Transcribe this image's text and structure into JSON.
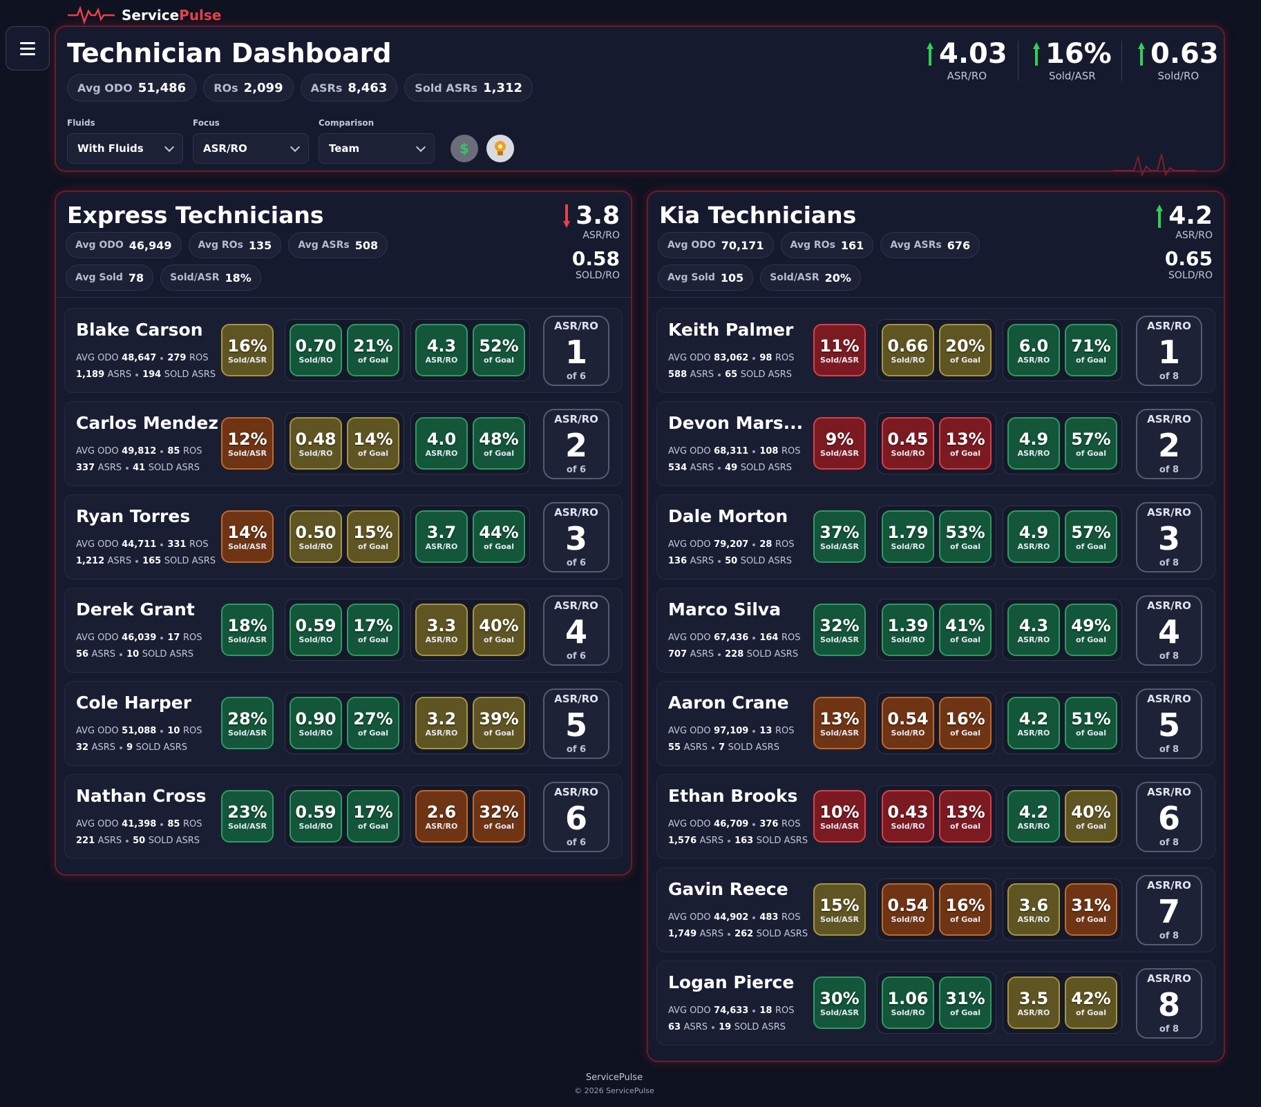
{
  "brand": {
    "part1": "Service",
    "part2": "Pulse"
  },
  "header": {
    "title": "Technician Dashboard",
    "stats": [
      {
        "label": "Avg ODO",
        "value": "51,486"
      },
      {
        "label": "ROs",
        "value": "2,099"
      },
      {
        "label": "ASRs",
        "value": "8,463"
      },
      {
        "label": "Sold ASRs",
        "value": "1,312"
      }
    ],
    "kpis": [
      {
        "value": "4.03",
        "label": "ASR/RO",
        "trend": "up"
      },
      {
        "value": "16%",
        "label": "Sold/ASR",
        "trend": "up"
      },
      {
        "value": "0.63",
        "label": "Sold/RO",
        "trend": "up"
      }
    ],
    "filters": [
      {
        "label": "Fluids",
        "value": "With Fluids"
      },
      {
        "label": "Focus",
        "value": "ASR/RO"
      },
      {
        "label": "Comparison",
        "value": "Team"
      }
    ],
    "dollar_icon": "$",
    "bulb_icon": "lightbulb-icon"
  },
  "colors": {
    "green": "#2f9b64",
    "olive": "#a89542",
    "orange": "#c06a2a",
    "red": "#d8404a",
    "brand_red": "#e8414a"
  },
  "teams": [
    {
      "title": "Express Technicians",
      "asr_ro": "3.8",
      "asr_ro_label": "ASR/RO",
      "trend": "down",
      "sold_ro": "0.58",
      "sold_ro_label": "SOLD/RO",
      "stats_row1": [
        {
          "label": "Avg ODO",
          "value": "46,949"
        },
        {
          "label": "Avg ROs",
          "value": "135"
        },
        {
          "label": "Avg ASRs",
          "value": "508"
        }
      ],
      "stats_row2": [
        {
          "label": "Avg Sold",
          "value": "78"
        },
        {
          "label": "Sold/ASR",
          "value": "18%"
        }
      ],
      "techs": [
        {
          "name": "Blake Carson",
          "odo": "48,647",
          "ros": "279",
          "asrs": "1,189",
          "sold": "194",
          "sold_asr": "16%",
          "sold_asr_c": "olive",
          "sold_ro": "0.70",
          "sold_ro_c": "green",
          "goal1": "21%",
          "goal1_c": "green",
          "asr_ro": "4.3",
          "asr_ro_c": "green",
          "goal2": "52%",
          "goal2_c": "green",
          "rank": "1",
          "of": "of 6"
        },
        {
          "name": "Carlos Mendez",
          "odo": "49,812",
          "ros": "85",
          "asrs": "337",
          "sold": "41",
          "sold_asr": "12%",
          "sold_asr_c": "orange",
          "sold_ro": "0.48",
          "sold_ro_c": "olive",
          "goal1": "14%",
          "goal1_c": "olive",
          "asr_ro": "4.0",
          "asr_ro_c": "green",
          "goal2": "48%",
          "goal2_c": "green",
          "rank": "2",
          "of": "of 6"
        },
        {
          "name": "Ryan Torres",
          "odo": "44,711",
          "ros": "331",
          "asrs": "1,212",
          "sold": "165",
          "sold_asr": "14%",
          "sold_asr_c": "orange",
          "sold_ro": "0.50",
          "sold_ro_c": "olive",
          "goal1": "15%",
          "goal1_c": "olive",
          "asr_ro": "3.7",
          "asr_ro_c": "green",
          "goal2": "44%",
          "goal2_c": "green",
          "rank": "3",
          "of": "of 6"
        },
        {
          "name": "Derek Grant",
          "odo": "46,039",
          "ros": "17",
          "asrs": "56",
          "sold": "10",
          "sold_asr": "18%",
          "sold_asr_c": "green",
          "sold_ro": "0.59",
          "sold_ro_c": "green",
          "goal1": "17%",
          "goal1_c": "green",
          "asr_ro": "3.3",
          "asr_ro_c": "olive",
          "goal2": "40%",
          "goal2_c": "olive",
          "rank": "4",
          "of": "of 6"
        },
        {
          "name": "Cole Harper",
          "odo": "51,088",
          "ros": "10",
          "asrs": "32",
          "sold": "9",
          "sold_asr": "28%",
          "sold_asr_c": "green",
          "sold_ro": "0.90",
          "sold_ro_c": "green",
          "goal1": "27%",
          "goal1_c": "green",
          "asr_ro": "3.2",
          "asr_ro_c": "olive",
          "goal2": "39%",
          "goal2_c": "olive",
          "rank": "5",
          "of": "of 6"
        },
        {
          "name": "Nathan Cross",
          "odo": "41,398",
          "ros": "85",
          "asrs": "221",
          "sold": "50",
          "sold_asr": "23%",
          "sold_asr_c": "green",
          "sold_ro": "0.59",
          "sold_ro_c": "green",
          "goal1": "17%",
          "goal1_c": "green",
          "asr_ro": "2.6",
          "asr_ro_c": "orange",
          "goal2": "32%",
          "goal2_c": "orange",
          "rank": "6",
          "of": "of 6"
        }
      ]
    },
    {
      "title": "Kia Technicians",
      "asr_ro": "4.2",
      "asr_ro_label": "ASR/RO",
      "trend": "up",
      "sold_ro": "0.65",
      "sold_ro_label": "SOLD/RO",
      "stats_row1": [
        {
          "label": "Avg ODO",
          "value": "70,171"
        },
        {
          "label": "Avg ROs",
          "value": "161"
        },
        {
          "label": "Avg ASRs",
          "value": "676"
        }
      ],
      "stats_row2": [
        {
          "label": "Avg Sold",
          "value": "105"
        },
        {
          "label": "Sold/ASR",
          "value": "20%"
        }
      ],
      "techs": [
        {
          "name": "Keith Palmer",
          "odo": "83,062",
          "ros": "98",
          "asrs": "588",
          "sold": "65",
          "sold_asr": "11%",
          "sold_asr_c": "red",
          "sold_ro": "0.66",
          "sold_ro_c": "olive",
          "goal1": "20%",
          "goal1_c": "olive",
          "asr_ro": "6.0",
          "asr_ro_c": "green",
          "goal2": "71%",
          "goal2_c": "green",
          "rank": "1",
          "of": "of 8"
        },
        {
          "name": "Devon Mars...",
          "odo": "68,311",
          "ros": "108",
          "asrs": "534",
          "sold": "49",
          "sold_asr": "9%",
          "sold_asr_c": "red",
          "sold_ro": "0.45",
          "sold_ro_c": "red",
          "goal1": "13%",
          "goal1_c": "red",
          "asr_ro": "4.9",
          "asr_ro_c": "green",
          "goal2": "57%",
          "goal2_c": "green",
          "rank": "2",
          "of": "of 8"
        },
        {
          "name": "Dale Morton",
          "odo": "79,207",
          "ros": "28",
          "asrs": "136",
          "sold": "50",
          "sold_asr": "37%",
          "sold_asr_c": "green",
          "sold_ro": "1.79",
          "sold_ro_c": "green",
          "goal1": "53%",
          "goal1_c": "green",
          "asr_ro": "4.9",
          "asr_ro_c": "green",
          "goal2": "57%",
          "goal2_c": "green",
          "rank": "3",
          "of": "of 8"
        },
        {
          "name": "Marco Silva",
          "odo": "67,436",
          "ros": "164",
          "asrs": "707",
          "sold": "228",
          "sold_asr": "32%",
          "sold_asr_c": "green",
          "sold_ro": "1.39",
          "sold_ro_c": "green",
          "goal1": "41%",
          "goal1_c": "green",
          "asr_ro": "4.3",
          "asr_ro_c": "green",
          "goal2": "49%",
          "goal2_c": "green",
          "rank": "4",
          "of": "of 8"
        },
        {
          "name": "Aaron Crane",
          "odo": "97,109",
          "ros": "13",
          "asrs": "55",
          "sold": "7",
          "sold_asr": "13%",
          "sold_asr_c": "orange",
          "sold_ro": "0.54",
          "sold_ro_c": "orange",
          "goal1": "16%",
          "goal1_c": "orange",
          "asr_ro": "4.2",
          "asr_ro_c": "green",
          "goal2": "51%",
          "goal2_c": "green",
          "rank": "5",
          "of": "of 8"
        },
        {
          "name": "Ethan Brooks",
          "odo": "46,709",
          "ros": "376",
          "asrs": "1,576",
          "sold": "163",
          "sold_asr": "10%",
          "sold_asr_c": "red",
          "sold_ro": "0.43",
          "sold_ro_c": "red",
          "goal1": "13%",
          "goal1_c": "red",
          "asr_ro": "4.2",
          "asr_ro_c": "green",
          "goal2": "40%",
          "goal2_c": "olive",
          "rank": "6",
          "of": "of 8"
        },
        {
          "name": "Gavin Reece",
          "odo": "44,902",
          "ros": "483",
          "asrs": "1,749",
          "sold": "262",
          "sold_asr": "15%",
          "sold_asr_c": "olive",
          "sold_ro": "0.54",
          "sold_ro_c": "orange",
          "goal1": "16%",
          "goal1_c": "orange",
          "asr_ro": "3.6",
          "asr_ro_c": "olive",
          "goal2": "31%",
          "goal2_c": "orange",
          "rank": "7",
          "of": "of 8"
        },
        {
          "name": "Logan Pierce",
          "odo": "74,633",
          "ros": "18",
          "asrs": "63",
          "sold": "19",
          "sold_asr": "30%",
          "sold_asr_c": "green",
          "sold_ro": "1.06",
          "sold_ro_c": "green",
          "goal1": "31%",
          "goal1_c": "green",
          "asr_ro": "3.5",
          "asr_ro_c": "olive",
          "goal2": "42%",
          "goal2_c": "olive",
          "rank": "8",
          "of": "of 8"
        }
      ]
    }
  ],
  "labels": {
    "sold_asr": "Sold/ASR",
    "sold_ro": "Sold/RO",
    "of_goal": "of Goal",
    "asr_ro": "ASR/RO",
    "avg_odo": "AVG ODO",
    "ros": "ROS",
    "asrs": "ASRS",
    "sold_asrs": "SOLD ASRS"
  },
  "footer": {
    "name": "ServicePulse",
    "copyright": "© 2026 ServicePulse"
  }
}
